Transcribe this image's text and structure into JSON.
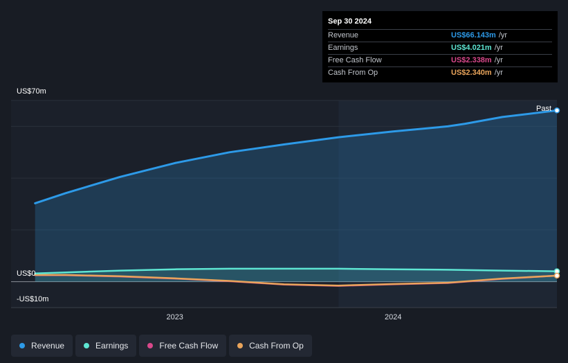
{
  "colors": {
    "revenue": "#2d9ae8",
    "earnings": "#5ee6d3",
    "free_cash_flow": "#d9488b",
    "cash_from_op": "#e9a45b"
  },
  "tooltip": {
    "date": "Sep 30 2024",
    "rows": [
      {
        "label": "Revenue",
        "value": "US$66.143m",
        "unit": "/yr",
        "color": "#2d9ae8"
      },
      {
        "label": "Earnings",
        "value": "US$4.021m",
        "unit": "/yr",
        "color": "#5ee6d3"
      },
      {
        "label": "Free Cash Flow",
        "value": "US$2.338m",
        "unit": "/yr",
        "color": "#d9488b"
      },
      {
        "label": "Cash From Op",
        "value": "US$2.340m",
        "unit": "/yr",
        "color": "#e9a45b"
      }
    ]
  },
  "chart_data": {
    "type": "line",
    "title": "",
    "xlabel": "",
    "ylabel": "",
    "y_axis_labels": {
      "top": "US$70m",
      "zero": "US$0",
      "bottom": "-US$10m"
    },
    "ylim": [
      -10,
      70
    ],
    "xlim": [
      2022.25,
      2024.75
    ],
    "x_ticks": [
      {
        "label": "2023",
        "value": 2023.0
      },
      {
        "label": "2024",
        "value": 2024.0
      }
    ],
    "past_label": "Past",
    "past_region_start": 2023.75,
    "series": [
      {
        "name": "Revenue",
        "key": "revenue",
        "points": [
          [
            2022.36,
            30.3
          ],
          [
            2022.5,
            34.2
          ],
          [
            2022.75,
            40.5
          ],
          [
            2023.0,
            45.8
          ],
          [
            2023.25,
            50.0
          ],
          [
            2023.5,
            53.0
          ],
          [
            2023.75,
            55.8
          ],
          [
            2024.0,
            58.0
          ],
          [
            2024.25,
            60.0
          ],
          [
            2024.33,
            61.0
          ],
          [
            2024.5,
            63.6
          ],
          [
            2024.75,
            66.143
          ]
        ]
      },
      {
        "name": "Earnings",
        "key": "earnings",
        "points": [
          [
            2022.36,
            3.2
          ],
          [
            2022.5,
            3.6
          ],
          [
            2022.75,
            4.3
          ],
          [
            2023.0,
            4.8
          ],
          [
            2023.25,
            5.0
          ],
          [
            2023.5,
            5.0
          ],
          [
            2023.75,
            5.0
          ],
          [
            2024.0,
            4.8
          ],
          [
            2024.25,
            4.6
          ],
          [
            2024.5,
            4.3
          ],
          [
            2024.75,
            4.021
          ]
        ]
      },
      {
        "name": "Free Cash Flow",
        "key": "free_cash_flow",
        "points": [
          [
            2022.36,
            2.5
          ],
          [
            2022.5,
            2.5
          ],
          [
            2022.75,
            2.0
          ],
          [
            2023.0,
            1.2
          ],
          [
            2023.25,
            0.2
          ],
          [
            2023.5,
            -1.1
          ],
          [
            2023.75,
            -1.6
          ],
          [
            2024.0,
            -1.0
          ],
          [
            2024.25,
            -0.5
          ],
          [
            2024.5,
            1.1
          ],
          [
            2024.75,
            2.338
          ]
        ]
      },
      {
        "name": "Cash From Op",
        "key": "cash_from_op",
        "points": [
          [
            2022.36,
            2.6
          ],
          [
            2022.5,
            2.6
          ],
          [
            2022.75,
            2.1
          ],
          [
            2023.0,
            1.3
          ],
          [
            2023.25,
            0.3
          ],
          [
            2023.5,
            -1.0
          ],
          [
            2023.75,
            -1.5
          ],
          [
            2024.0,
            -0.9
          ],
          [
            2024.25,
            -0.4
          ],
          [
            2024.5,
            1.2
          ],
          [
            2024.75,
            2.34
          ]
        ]
      }
    ]
  },
  "legend": [
    {
      "label": "Revenue",
      "color": "#2d9ae8"
    },
    {
      "label": "Earnings",
      "color": "#5ee6d3"
    },
    {
      "label": "Free Cash Flow",
      "color": "#d9488b"
    },
    {
      "label": "Cash From Op",
      "color": "#e9a45b"
    }
  ]
}
